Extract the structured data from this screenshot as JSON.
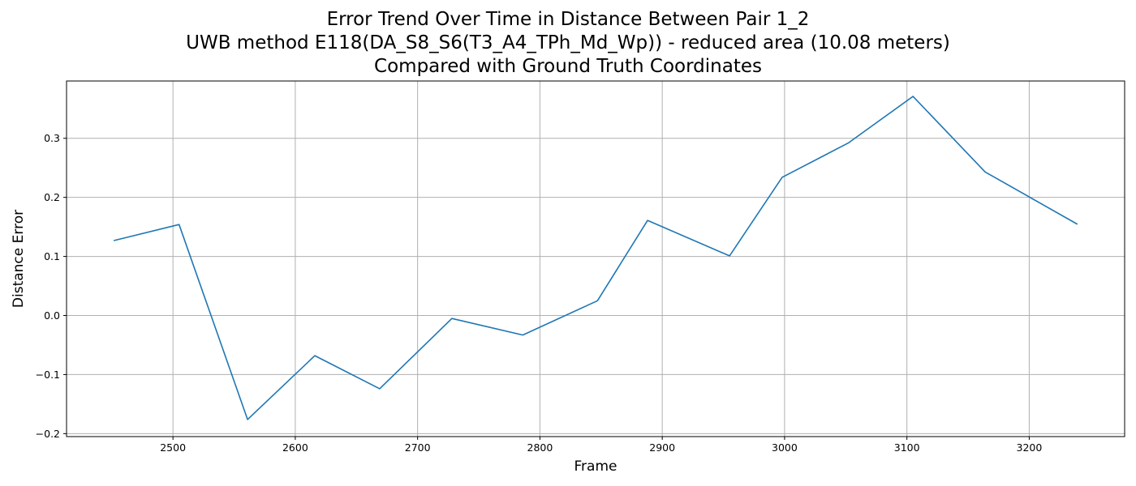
{
  "chart_data": {
    "type": "line",
    "title_lines": [
      "Error Trend Over Time in Distance Between Pair 1_2",
      "UWB method E118(DA_S8_S6(T3_A4_TPh_Md_Wp)) - reduced area (10.08 meters)",
      "Compared with Ground Truth Coordinates"
    ],
    "xlabel": "Frame",
    "ylabel": "Distance Error",
    "xlim": [
      2413,
      3278
    ],
    "ylim": [
      -0.205,
      0.397
    ],
    "xticks": [
      2500,
      2600,
      2700,
      2800,
      2900,
      3000,
      3100,
      3200
    ],
    "yticks": [
      -0.2,
      -0.1,
      0.0,
      0.1,
      0.2,
      0.3
    ],
    "ytick_labels": [
      "−0.2",
      "−0.1",
      "0.0",
      "0.1",
      "0.2",
      "0.3"
    ],
    "grid": true,
    "series": [
      {
        "color": "#1f77b4",
        "x": [
          2452,
          2505,
          2561,
          2616,
          2669,
          2728,
          2786,
          2847,
          2888,
          2955,
          2998,
          3052,
          3105,
          3164,
          3239
        ],
        "y": [
          0.127,
          0.154,
          -0.176,
          -0.068,
          -0.124,
          -0.005,
          -0.033,
          0.025,
          0.161,
          0.101,
          0.234,
          0.292,
          0.371,
          0.243,
          0.155
        ]
      }
    ]
  }
}
